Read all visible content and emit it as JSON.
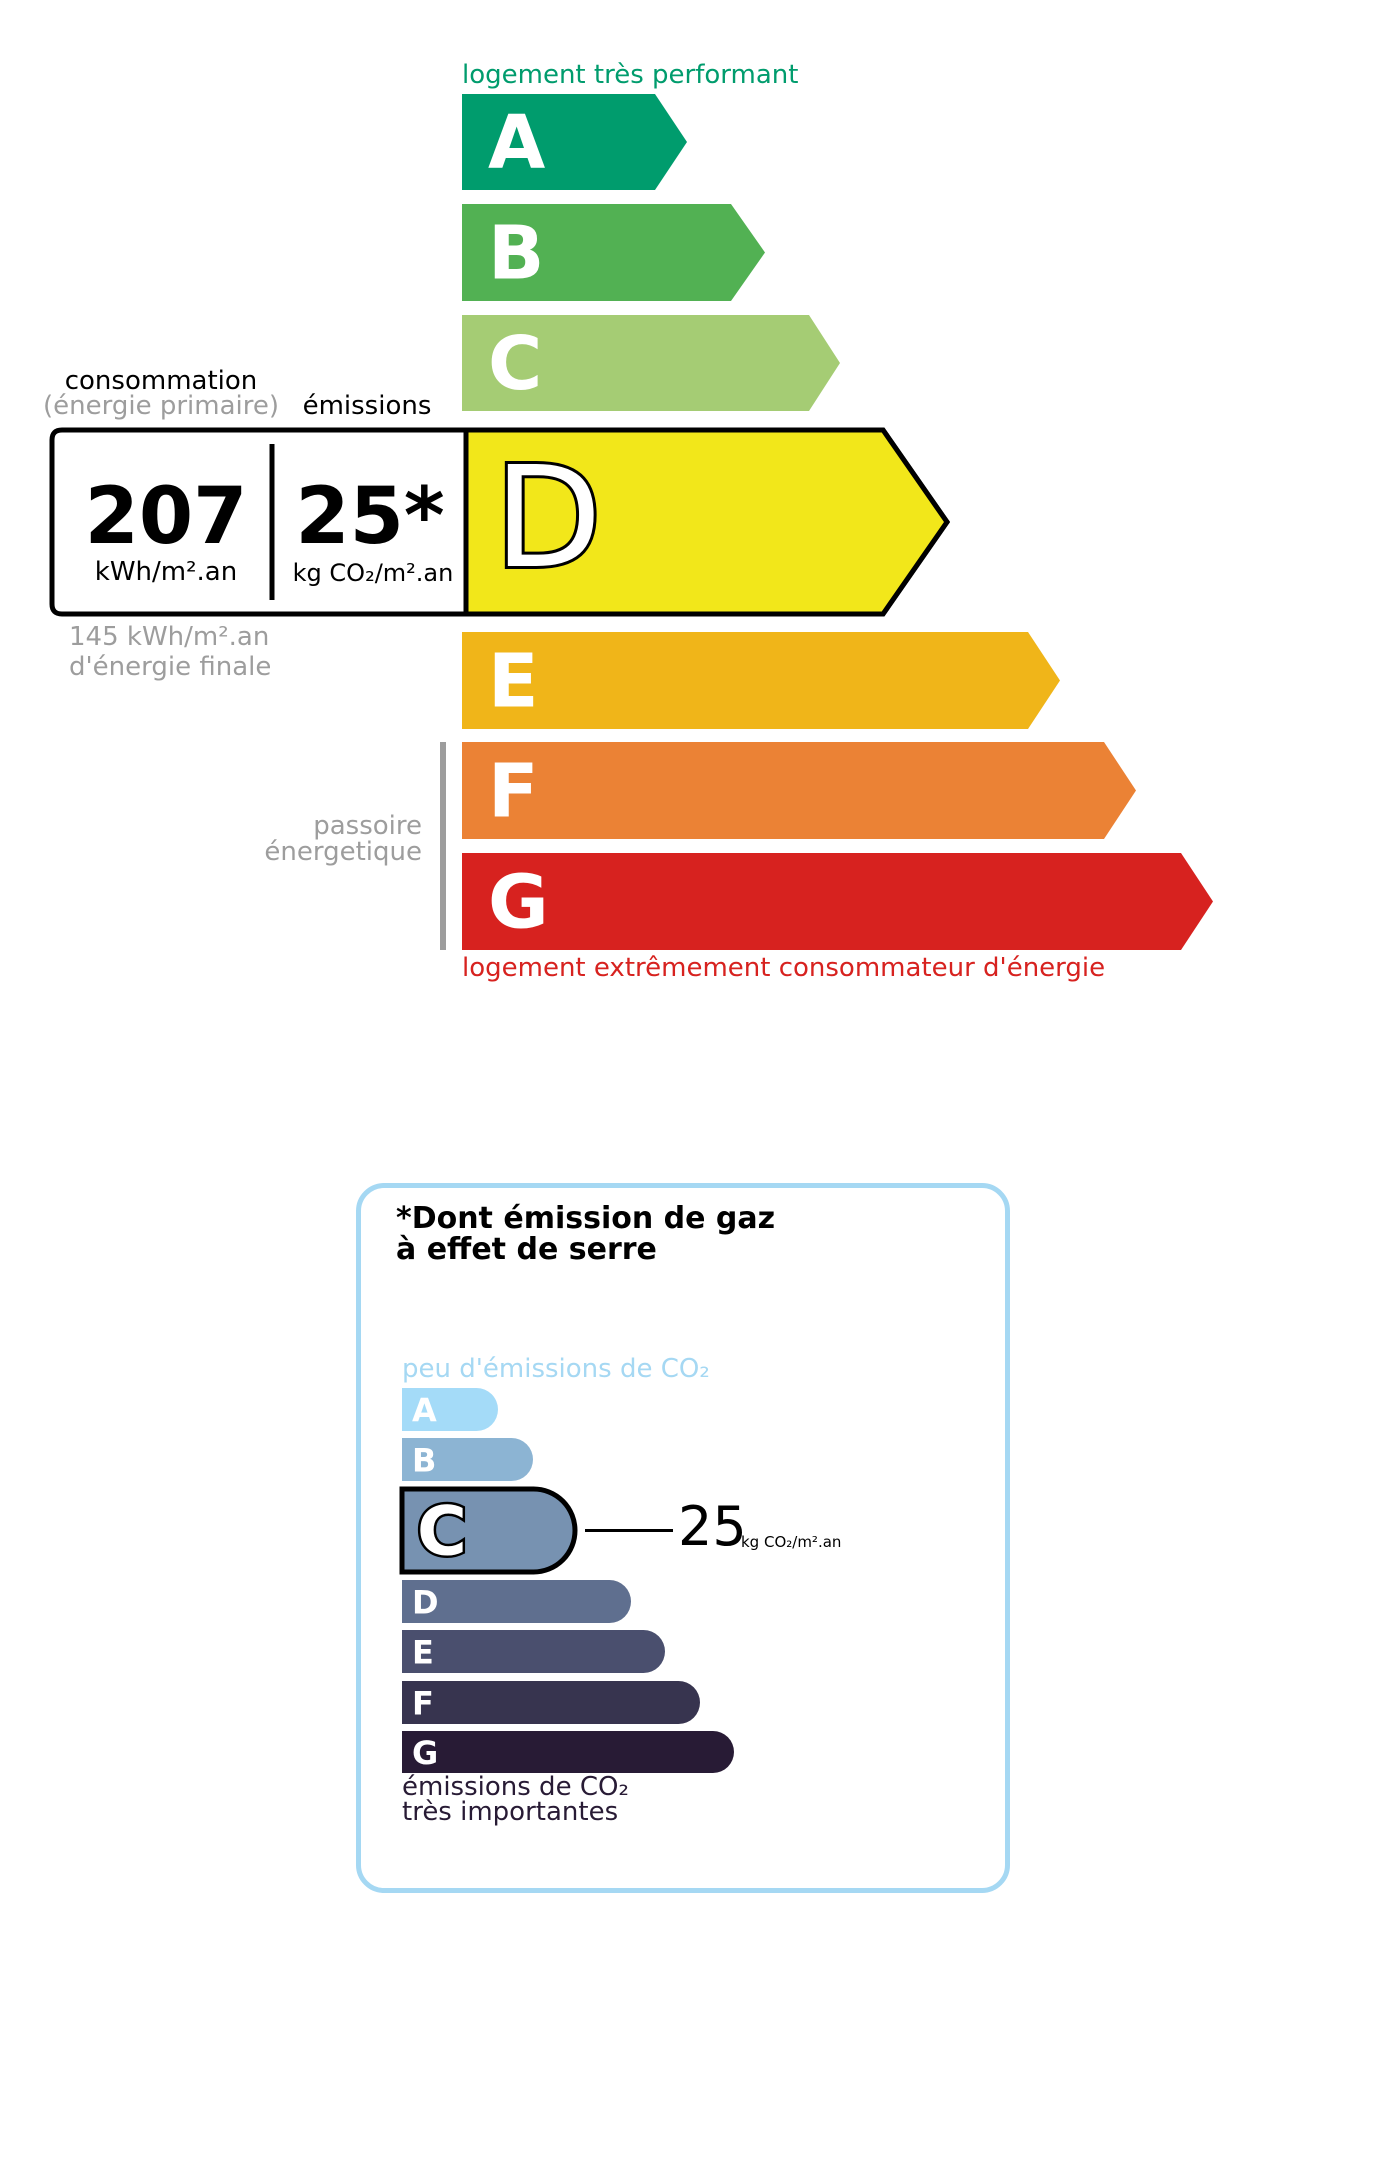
{
  "energy": {
    "top_label": "logement très performant",
    "bottom_label": "logement extrêmement consommateur d'énergie",
    "current_class": "D",
    "classes": [
      {
        "letter": "A",
        "color": "#009c6d"
      },
      {
        "letter": "B",
        "color": "#52b153"
      },
      {
        "letter": "C",
        "color": "#a5cc74"
      },
      {
        "letter": "D",
        "color": "#f2e71a"
      },
      {
        "letter": "E",
        "color": "#f0b519"
      },
      {
        "letter": "F",
        "color": "#eb8235"
      },
      {
        "letter": "G",
        "color": "#d7221f"
      }
    ],
    "consumption_label": "consommation",
    "consumption_sub": "(énergie primaire)",
    "emissions_label": "émissions",
    "consumption_value": "207",
    "consumption_unit": "kWh/m².an",
    "emissions_value": "25*",
    "emissions_unit": "kg CO₂/m².an",
    "final_energy_line1": "145 kWh/m².an",
    "final_energy_line2": "d'énergie finale",
    "passoire_line1": "passoire",
    "passoire_line2": "énergetique",
    "top_label_color": "#009c6d",
    "bottom_label_color": "#d7221f"
  },
  "ges": {
    "title_line1": "*Dont émission de gaz",
    "title_line2": "à effet de serre",
    "top_label": "peu d'émissions de CO₂",
    "bottom_line1": "émissions de CO₂",
    "bottom_line2": "très importantes",
    "current_class": "C",
    "value": "25",
    "unit": "kg CO₂/m².an",
    "border_color": "#a5d8f3",
    "classes": [
      {
        "letter": "A",
        "color": "#a4dbf8"
      },
      {
        "letter": "B",
        "color": "#8cb4d3"
      },
      {
        "letter": "C",
        "color": "#7792b1"
      },
      {
        "letter": "D",
        "color": "#5f6f8f"
      },
      {
        "letter": "E",
        "color": "#4a4f6e"
      },
      {
        "letter": "F",
        "color": "#37344f"
      },
      {
        "letter": "G",
        "color": "#281b35"
      }
    ]
  }
}
